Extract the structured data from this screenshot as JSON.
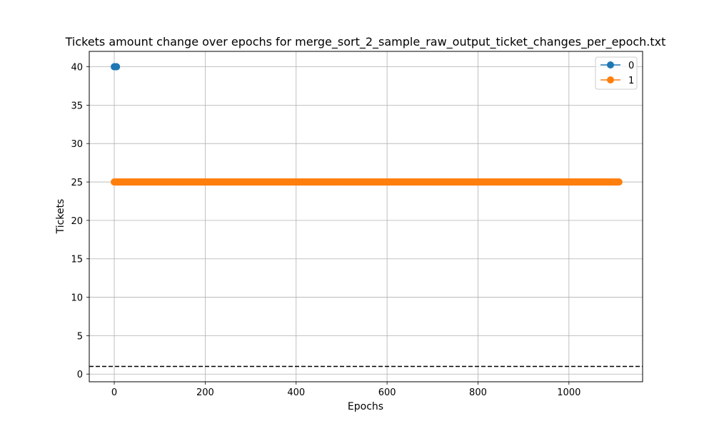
{
  "chart_data": {
    "type": "line",
    "title": "Tickets amount change over epochs for merge_sort_2_sample_raw_output_ticket_changes_per_epoch.txt",
    "xlabel": "Epochs",
    "ylabel": "Tickets",
    "xlim": [
      -55,
      1162
    ],
    "ylim": [
      -1,
      42
    ],
    "xticks": [
      0,
      200,
      400,
      600,
      800,
      1000
    ],
    "yticks": [
      0,
      5,
      10,
      15,
      20,
      25,
      30,
      35,
      40
    ],
    "grid": true,
    "legend_position": "top-right",
    "series": [
      {
        "name": "0",
        "color": "#1f77b4",
        "x": [
          0,
          1,
          2,
          3,
          4,
          5
        ],
        "y": [
          40,
          40,
          40,
          40,
          40,
          40
        ]
      },
      {
        "name": "1",
        "color": "#ff7f0e",
        "x_start": 0,
        "x_end": 1110,
        "x_step": 1,
        "y": 25
      }
    ],
    "reference_line": {
      "y": 1,
      "color": "#000000",
      "style": "dashed"
    }
  }
}
